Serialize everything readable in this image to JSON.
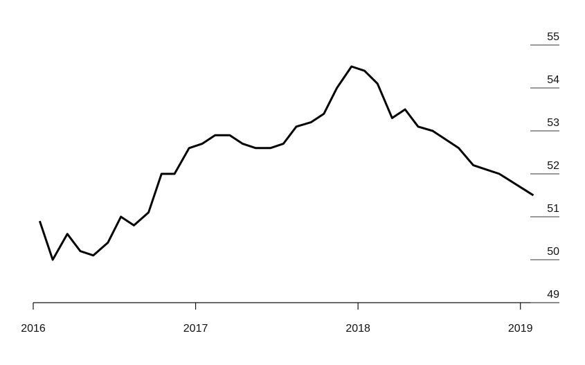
{
  "chart_data": {
    "type": "line",
    "x": [
      2016.04,
      2016.12,
      2016.21,
      2016.29,
      2016.37,
      2016.46,
      2016.54,
      2016.62,
      2016.71,
      2016.79,
      2016.87,
      2016.96,
      2017.04,
      2017.12,
      2017.21,
      2017.29,
      2017.37,
      2017.46,
      2017.54,
      2017.62,
      2017.71,
      2017.79,
      2017.87,
      2017.96,
      2018.04,
      2018.12,
      2018.21,
      2018.29,
      2018.37,
      2018.46,
      2018.54,
      2018.62,
      2018.71,
      2018.79,
      2018.87,
      2019.08
    ],
    "values": [
      50.9,
      50.0,
      50.6,
      50.2,
      50.1,
      50.4,
      51.0,
      50.8,
      51.1,
      52.0,
      52.0,
      52.6,
      52.7,
      52.9,
      52.9,
      52.7,
      52.6,
      52.6,
      52.7,
      53.1,
      53.2,
      53.4,
      54.0,
      54.5,
      54.4,
      54.1,
      53.3,
      53.5,
      53.1,
      53.0,
      52.8,
      52.6,
      52.2,
      52.1,
      52.0,
      51.5
    ],
    "color": "#000000",
    "xlim": [
      2016,
      2019.24
    ],
    "ylim": [
      49,
      55
    ],
    "xticks": [
      2016,
      2017,
      2018,
      2019
    ],
    "yticks": [
      49,
      50,
      51,
      52,
      53,
      54,
      55
    ]
  }
}
